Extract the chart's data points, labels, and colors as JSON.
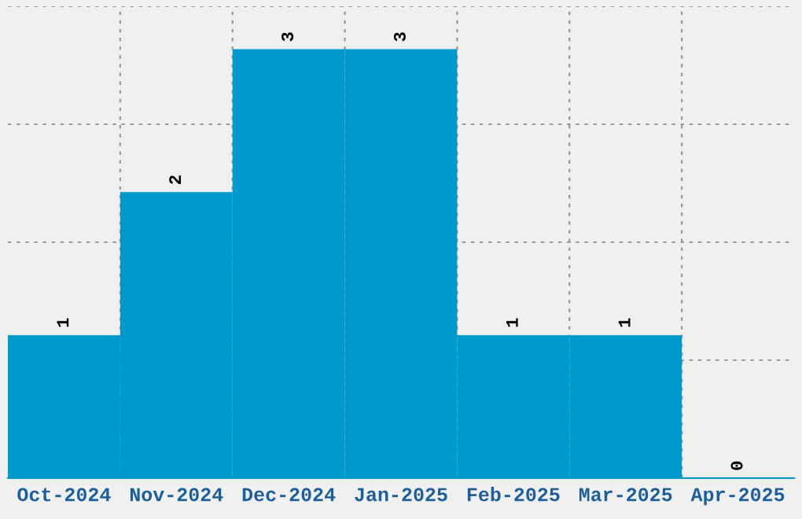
{
  "chart_data": {
    "type": "bar",
    "categories": [
      "Oct-2024",
      "Nov-2024",
      "Dec-2024",
      "Jan-2025",
      "Feb-2025",
      "Mar-2025",
      "Apr-2025"
    ],
    "values": [
      1,
      2,
      3,
      3,
      1,
      1,
      0
    ],
    "color": "#0099cc",
    "ylim": [
      0,
      3.3
    ],
    "yticks": [
      {
        "value": 0,
        "label": null
      },
      {
        "value": 0.825,
        "label": null
      },
      {
        "value": 1.65,
        "label": null
      },
      {
        "value": 2.475,
        "label": null
      },
      {
        "value": 3.3,
        "label": null
      }
    ],
    "grid": true,
    "data_labels": true
  }
}
